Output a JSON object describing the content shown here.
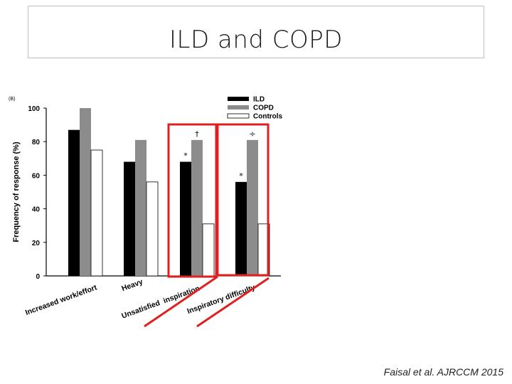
{
  "slide": {
    "title": "ILD and COPD",
    "citation": "Faisal et al. AJRCCM 2015"
  },
  "chart_data": {
    "type": "bar",
    "panel_label": "(B)",
    "ylabel": "Frequency of response (%)",
    "xlabel": "",
    "ylim": [
      0,
      100
    ],
    "yticks": [
      0,
      20,
      40,
      60,
      80,
      100
    ],
    "grid": false,
    "legend_position": "top-right",
    "categories": [
      "Increased work/effort",
      "Heavy",
      "Unsatisfied  inspiration",
      "Inspiratory difficulty"
    ],
    "series": [
      {
        "name": "ILD",
        "color": "#000000",
        "values": [
          87,
          68,
          68,
          56
        ]
      },
      {
        "name": "COPD",
        "color": "#8c8c8c",
        "values": [
          100,
          81,
          81,
          81
        ]
      },
      {
        "name": "Controls",
        "color": "#ffffff",
        "values": [
          75,
          56,
          31,
          31
        ]
      }
    ],
    "annotations": [
      {
        "category_index": 2,
        "series": "ILD",
        "symbol": "*"
      },
      {
        "category_index": 2,
        "series": "COPD",
        "symbol": "†"
      },
      {
        "category_index": 3,
        "series": "ILD",
        "symbol": "*"
      },
      {
        "category_index": 3,
        "series": "COPD",
        "symbol": "÷"
      }
    ],
    "highlighted_categories": [
      2,
      3
    ],
    "highlight_color": "#e02020"
  }
}
